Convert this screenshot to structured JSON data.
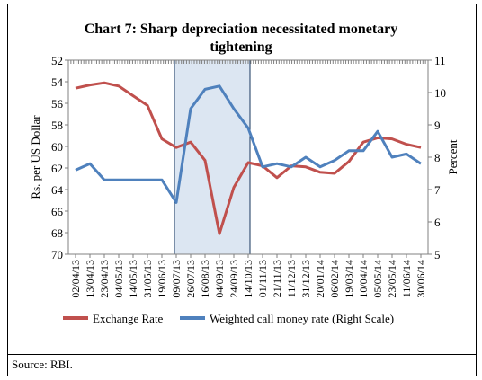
{
  "chart_data": {
    "type": "line",
    "title": "Chart 7: Sharp depreciation necessitated monetary tightening",
    "ylabel_left": "Rs. per US Dollar",
    "ylabel_right": "Percent",
    "y_left_range": [
      52,
      70
    ],
    "y_left_inverted": true,
    "y_left_ticks": [
      52,
      54,
      56,
      58,
      60,
      62,
      64,
      66,
      68,
      70
    ],
    "y_right_range": [
      5,
      11
    ],
    "y_right_ticks": [
      5,
      6,
      7,
      8,
      9,
      10,
      11
    ],
    "x_tick_labels": [
      "02/04/13",
      "13/04/13",
      "23/04/13",
      "04/05/13",
      "14/05/13",
      "31/05/13",
      "19/06/13",
      "09/07/13",
      "26/07/13",
      "16/08/13",
      "04/09/13",
      "24/09/13",
      "14/10/13",
      "01/11/13",
      "21/11/13",
      "11/12/13",
      "31/12/13",
      "20/01/14",
      "06/02/14",
      "19/03/14",
      "10/04/14",
      "05/05/14",
      "23/05/14",
      "11/06/14",
      "30/06/14"
    ],
    "highlight_range": [
      "09/07/13",
      "14/10/13"
    ],
    "legend_position": "bottom",
    "series": [
      {
        "name": "Exchange Rate",
        "axis": "left",
        "color": "#C0504D",
        "x": [
          0,
          1,
          2,
          3,
          4,
          5,
          6,
          7,
          8,
          9,
          10,
          11,
          12,
          13,
          14,
          15,
          16,
          17,
          18,
          19,
          20,
          21,
          22,
          23,
          24
        ],
        "values": [
          54.6,
          54.3,
          54.1,
          54.4,
          55.3,
          56.2,
          59.3,
          60.1,
          59.6,
          61.3,
          68.1,
          63.8,
          61.5,
          61.8,
          62.9,
          61.8,
          61.9,
          62.4,
          62.5,
          61.4,
          59.6,
          59.2,
          59.3,
          59.8,
          60.1
        ]
      },
      {
        "name": "Weighted call money rate (Right Scale)",
        "axis": "right",
        "color": "#4F81BD",
        "x": [
          0,
          1,
          2,
          3,
          4,
          5,
          6,
          7,
          8,
          9,
          10,
          11,
          12,
          13,
          14,
          15,
          16,
          17,
          18,
          19,
          20,
          21,
          22,
          23,
          24
        ],
        "values": [
          7.6,
          7.8,
          7.3,
          7.3,
          7.3,
          7.3,
          7.3,
          6.6,
          9.5,
          10.1,
          10.2,
          9.5,
          8.9,
          7.7,
          7.8,
          7.7,
          8.0,
          7.7,
          7.9,
          8.2,
          8.2,
          8.8,
          8.0,
          8.1,
          7.8
        ]
      }
    ]
  },
  "source": "Source: RBI."
}
